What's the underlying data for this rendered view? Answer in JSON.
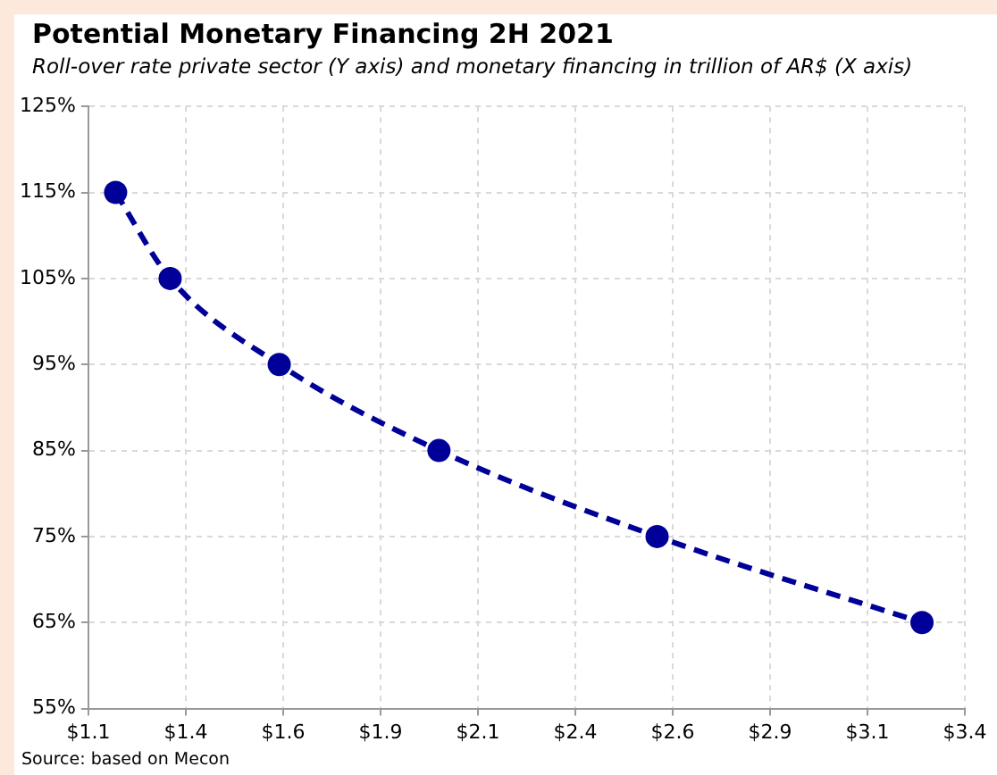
{
  "chart_data": {
    "type": "line",
    "title": "Potential Monetary Financing 2H 2021",
    "subtitle": "Roll-over rate private sector (Y axis) and monetary financing in trillion of AR$ (X axis)",
    "annotations": [
      "Source: based on Mecon"
    ],
    "x": [
      1.17,
      1.31,
      1.59,
      2.0,
      2.56,
      3.24
    ],
    "series": [
      {
        "color": "#000099",
        "values": [
          115,
          105,
          95,
          85,
          75,
          65
        ]
      }
    ],
    "xlim": [
      1.1,
      3.35
    ],
    "xticks": [
      {
        "value": 1.1,
        "label": "$1.1"
      },
      {
        "value": 1.35,
        "label": "$1.4"
      },
      {
        "value": 1.6,
        "label": "$1.6"
      },
      {
        "value": 1.85,
        "label": "$1.9"
      },
      {
        "value": 2.1,
        "label": "$2.1"
      },
      {
        "value": 2.35,
        "label": "$2.4"
      },
      {
        "value": 2.6,
        "label": "$2.6"
      },
      {
        "value": 2.85,
        "label": "$2.9"
      },
      {
        "value": 3.1,
        "label": "$3.1"
      },
      {
        "value": 3.35,
        "label": "$3.4"
      }
    ],
    "ylim": [
      55,
      125
    ],
    "yticks": [
      {
        "value": 55,
        "label": "55%"
      },
      {
        "value": 65,
        "label": "65%"
      },
      {
        "value": 75,
        "label": "75%"
      },
      {
        "value": 85,
        "label": "85%"
      },
      {
        "value": 95,
        "label": "95%"
      },
      {
        "value": 105,
        "label": "105%"
      },
      {
        "value": 115,
        "label": "115%"
      },
      {
        "value": 125,
        "label": "125%"
      }
    ],
    "grid": true,
    "marker": "circle",
    "line_style": "dashed"
  }
}
